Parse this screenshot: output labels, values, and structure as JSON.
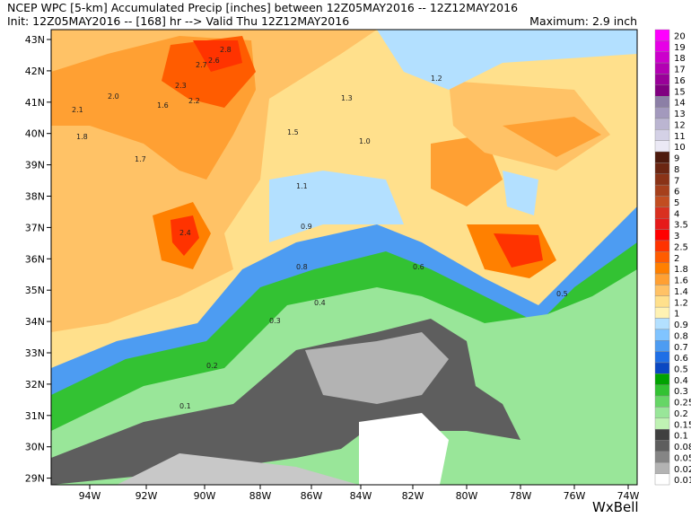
{
  "header": {
    "line1": "NCEP WPC [5-km] Accumulated Precip [inches] between 12Z05MAY2016 -- 12Z12MAY2016",
    "line2": "Init: 12Z05MAY2016 -- [168] hr --> Valid Thu 12Z12MAY2016",
    "maximum": "Maximum: 2.9 inch"
  },
  "map": {
    "lon_labels": [
      "94W",
      "92W",
      "90W",
      "88W",
      "86W",
      "84W",
      "82W",
      "80W",
      "78W",
      "76W",
      "74W"
    ],
    "lat_labels": [
      "43N",
      "42N",
      "41N",
      "40N",
      "39N",
      "38N",
      "37N",
      "36N",
      "35N",
      "34N",
      "33N",
      "32N",
      "31N",
      "30N",
      "29N"
    ],
    "value_labels": [
      "2.8",
      "2.6",
      "2.7",
      "2.4",
      "2.3",
      "2.0",
      "1.8",
      "1.6",
      "1.5",
      "1.3",
      "1.1",
      "1.0",
      "0.9",
      "0.6",
      "0.4",
      "0.3",
      "0.2",
      "0.1",
      "2.1",
      "2.2",
      "1.7",
      "1.2",
      "0.5",
      "0.8"
    ]
  },
  "colorbar": {
    "labels": [
      "20",
      "19",
      "18",
      "17",
      "16",
      "15",
      "14",
      "13",
      "12",
      "11",
      "10",
      "9",
      "8",
      "7",
      "6",
      "5",
      "4",
      "3.5",
      "3",
      "2.5",
      "2",
      "1.8",
      "1.6",
      "1.4",
      "1.2",
      "1",
      "0.9",
      "0.8",
      "0.7",
      "0.6",
      "0.5",
      "0.4",
      "0.3",
      "0.25",
      "0.2",
      "0.15",
      "0.1",
      "0.08",
      "0.05",
      "0.02",
      "0.01"
    ],
    "colors": [
      "#ff00ff",
      "#e600e6",
      "#cc00cc",
      "#b300b3",
      "#990099",
      "#800080",
      "#8c7fa6",
      "#a399bd",
      "#bbb5d1",
      "#d4d1e6",
      "#ebe9f5",
      "#4d1a0d",
      "#6b2612",
      "#8a3317",
      "#a6401c",
      "#c24d21",
      "#d93020",
      "#e61a1a",
      "#ff0000",
      "#ff3300",
      "#ff5c00",
      "#ff8000",
      "#ffa033",
      "#ffc266",
      "#ffe08c",
      "#fff2b3",
      "#b3e0ff",
      "#80c4ff",
      "#4d9cf2",
      "#1f6fe6",
      "#0a47c2",
      "#00a300",
      "#33c233",
      "#66d666",
      "#99e699",
      "#bff2b3",
      "#404040",
      "#5e5e5e",
      "#858585",
      "#b3b3b3",
      "#ffffff"
    ]
  },
  "logo": "WxBell"
}
